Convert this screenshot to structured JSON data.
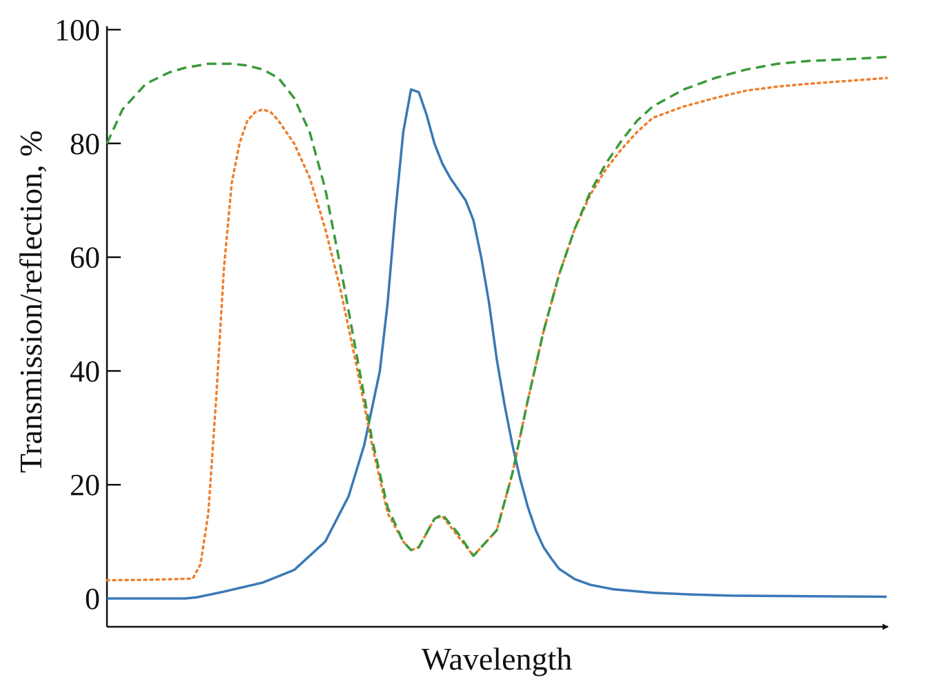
{
  "chart_data": {
    "type": "line",
    "xlabel": "Wavelength",
    "ylabel": "Transmission/reflection, %",
    "xlim": [
      0,
      1
    ],
    "ylim": [
      -5,
      100
    ],
    "yticks": [
      0,
      20,
      40,
      60,
      80,
      100
    ],
    "yticks_labels": [
      "0",
      "20",
      "40",
      "60",
      "80",
      "100"
    ],
    "x_tick_labels_shown": false,
    "grid": false,
    "legend": "none",
    "series": [
      {
        "style": "solid",
        "color": "#3a78b5",
        "x": [
          0,
          0.05,
          0.1,
          0.115,
          0.15,
          0.2,
          0.24,
          0.28,
          0.31,
          0.33,
          0.35,
          0.36,
          0.37,
          0.38,
          0.39,
          0.4,
          0.41,
          0.42,
          0.43,
          0.44,
          0.45,
          0.46,
          0.47,
          0.48,
          0.49,
          0.5,
          0.51,
          0.52,
          0.53,
          0.54,
          0.55,
          0.56,
          0.57,
          0.58,
          0.6,
          0.62,
          0.65,
          0.7,
          0.75,
          0.8,
          0.9,
          1.0
        ],
        "y": [
          0,
          0,
          0,
          0.2,
          1.2,
          2.8,
          5,
          10,
          18,
          27,
          40,
          52,
          68,
          82,
          89.5,
          89,
          85,
          80,
          76.5,
          74,
          72,
          70,
          66.5,
          60,
          52,
          42,
          34,
          27,
          21,
          16,
          12,
          9,
          7,
          5.2,
          3.4,
          2.4,
          1.6,
          1.0,
          0.7,
          0.5,
          0.4,
          0.3
        ]
      },
      {
        "style": "dotted",
        "color": "#ee7f2d",
        "x": [
          0,
          0.06,
          0.11,
          0.12,
          0.13,
          0.14,
          0.15,
          0.16,
          0.17,
          0.18,
          0.19,
          0.2,
          0.21,
          0.22,
          0.24,
          0.26,
          0.28,
          0.3,
          0.32,
          0.34,
          0.36,
          0.38,
          0.39,
          0.4,
          0.41,
          0.42,
          0.43,
          0.45,
          0.47,
          0.5,
          0.52,
          0.54,
          0.56,
          0.58,
          0.6,
          0.62,
          0.64,
          0.66,
          0.68,
          0.7,
          0.74,
          0.78,
          0.82,
          0.86,
          0.9,
          0.95,
          1.0
        ],
        "y": [
          3.2,
          3.3,
          3.5,
          6,
          15,
          35,
          58,
          73,
          80,
          84,
          85.5,
          86,
          85.5,
          84,
          80,
          74,
          65,
          54,
          41,
          27,
          15,
          10,
          8.5,
          9,
          11.5,
          14,
          14.5,
          11,
          7.5,
          12,
          22,
          35,
          47,
          57,
          65,
          71,
          75.5,
          79,
          82,
          84.5,
          86.5,
          88,
          89.3,
          90,
          90.5,
          91,
          91.5
        ]
      },
      {
        "style": "dashed",
        "color": "#3a9a3a",
        "x": [
          0,
          0.02,
          0.05,
          0.08,
          0.1,
          0.13,
          0.16,
          0.18,
          0.2,
          0.22,
          0.24,
          0.26,
          0.28,
          0.3,
          0.32,
          0.34,
          0.36,
          0.38,
          0.39,
          0.4,
          0.41,
          0.42,
          0.43,
          0.45,
          0.47,
          0.5,
          0.52,
          0.54,
          0.56,
          0.58,
          0.6,
          0.62,
          0.64,
          0.66,
          0.68,
          0.7,
          0.74,
          0.78,
          0.82,
          0.86,
          0.9,
          0.95,
          1.0
        ],
        "y": [
          80,
          86,
          90.5,
          92.5,
          93.3,
          94,
          94,
          93.7,
          93,
          91.5,
          88,
          82,
          72,
          58,
          43,
          28,
          16,
          10,
          8.5,
          9,
          11.5,
          14,
          14.8,
          11.5,
          7.5,
          12,
          22,
          35,
          47,
          57,
          65,
          71.5,
          76.5,
          80.5,
          84,
          86.5,
          89.5,
          91.5,
          93,
          94,
          94.5,
          94.8,
          95.2
        ]
      }
    ]
  }
}
